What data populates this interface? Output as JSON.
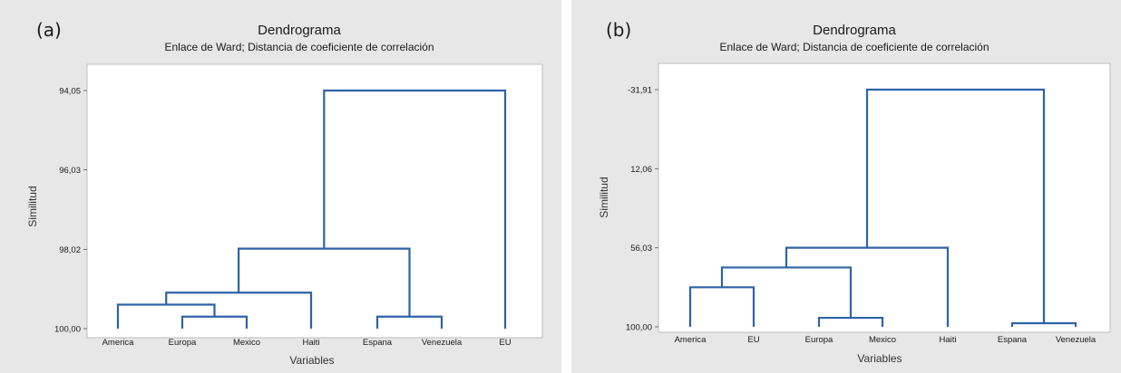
{
  "panels": [
    {
      "label": "(a)",
      "title": "Dendrograma",
      "subtitle": "Enlace de Ward; Distancia de coeficiente de correlación",
      "xlabel": "Variables",
      "ylabel": "Similitud"
    },
    {
      "label": "(b)",
      "title": "Dendrograma",
      "subtitle": "Enlace de Ward; Distancia de coeficiente de correlación",
      "xlabel": "Variables",
      "ylabel": "Similitud"
    }
  ],
  "colors": {
    "line": "#2e63a8",
    "panel_background": "#e7e7e7",
    "plot_background": "#ffffff"
  },
  "chart_data": [
    {
      "type": "dendrogram",
      "title": "Dendrograma",
      "subtitle": "Enlace de Ward; Distancia de coeficiente de correlación",
      "xlabel": "Variables",
      "ylabel": "Similitud",
      "ylim": [
        94.05,
        100.0
      ],
      "y_inverted": true,
      "yticks": [
        94.05,
        96.03,
        98.02,
        100.0
      ],
      "ytick_labels": [
        "94,05",
        "96,03",
        "98,02",
        "100,00"
      ],
      "leaves": [
        "America",
        "Europa",
        "Mexico",
        "Haiti",
        "Espana",
        "Venezuela",
        "EU"
      ],
      "merges": [
        {
          "left": "Europa",
          "right": "Mexico",
          "similarity": 99.7
        },
        {
          "left": "Espana",
          "right": "Venezuela",
          "similarity": 99.7
        },
        {
          "left": "America",
          "right": "Europa+Mexico",
          "similarity": 99.4
        },
        {
          "left": "America+Europa+Mexico",
          "right": "Haiti",
          "similarity": 99.1
        },
        {
          "left": "America+Europa+Mexico+Haiti",
          "right": "Espana+Venezuela",
          "similarity": 98.0
        },
        {
          "left": "America+Europa+Mexico+Haiti+Espana+Venezuela",
          "right": "EU",
          "similarity": 94.05
        }
      ]
    },
    {
      "type": "dendrogram",
      "title": "Dendrograma",
      "subtitle": "Enlace de Ward; Distancia de coeficiente de correlación",
      "xlabel": "Variables",
      "ylabel": "Similitud",
      "ylim": [
        -31.91,
        100.0
      ],
      "y_inverted": true,
      "yticks": [
        -31.91,
        12.06,
        56.03,
        100.0
      ],
      "ytick_labels": [
        "-31,91",
        "12,06",
        "56,03",
        "100,00"
      ],
      "leaves": [
        "America",
        "EU",
        "Europa",
        "Mexico",
        "Haiti",
        "Espana",
        "Venezuela"
      ],
      "merges": [
        {
          "left": "Espana",
          "right": "Venezuela",
          "similarity": 98.0
        },
        {
          "left": "Europa",
          "right": "Mexico",
          "similarity": 95.0
        },
        {
          "left": "America",
          "right": "EU",
          "similarity": 78.0
        },
        {
          "left": "America+EU",
          "right": "Europa+Mexico",
          "similarity": 67.0
        },
        {
          "left": "America+EU+Europa+Mexico",
          "right": "Haiti",
          "similarity": 56.0
        },
        {
          "left": "America+EU+Europa+Mexico+Haiti",
          "right": "Espana+Venezuela",
          "similarity": -31.91
        }
      ]
    }
  ]
}
